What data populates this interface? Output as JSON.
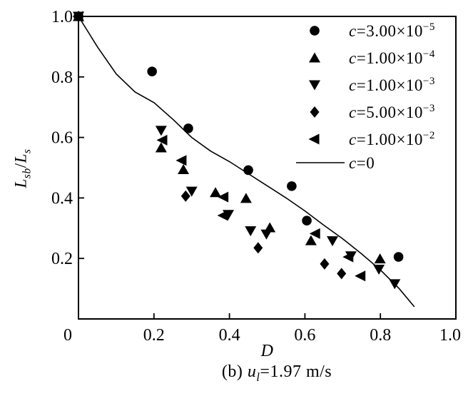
{
  "figure": {
    "caption": {
      "prefix": "(b) ",
      "symbol": "u",
      "subscript": "l",
      "rest": "=1.97 m/s"
    },
    "xlabel": "D",
    "ylabel": {
      "l1": "L",
      "sub1": "sb",
      "slash": "/",
      "l2": "L",
      "sub2": "s"
    }
  },
  "colors": {
    "ink": "#000000",
    "background": "#ffffff"
  },
  "chart_data": {
    "type": "scatter",
    "title": "",
    "xlabel": "D",
    "ylabel": "Lsb/Ls",
    "xlim": [
      0,
      1.0
    ],
    "ylim": [
      0,
      1.0
    ],
    "grid": false,
    "legend_position": "upper-right-inside",
    "x_ticks": [
      {
        "v": 0.0,
        "label": "0",
        "dx": -15
      },
      {
        "v": 0.2,
        "label": "0.2",
        "dx": 0
      },
      {
        "v": 0.4,
        "label": "0.4",
        "dx": 0
      },
      {
        "v": 0.6,
        "label": "0.6",
        "dx": 0
      },
      {
        "v": 0.8,
        "label": "0.8",
        "dx": 0
      },
      {
        "v": 1.0,
        "label": "1.0",
        "dx": -8
      }
    ],
    "y_ticks": [
      {
        "v": 0.2,
        "label": "0.2"
      },
      {
        "v": 0.4,
        "label": "0.4"
      },
      {
        "v": 0.6,
        "label": "0.6"
      },
      {
        "v": 0.8,
        "label": "0.8"
      },
      {
        "v": 1.0,
        "label": "1.0"
      }
    ],
    "series": [
      {
        "name": "c=3.00e-5",
        "marker": "circle",
        "legend": {
          "var": "c",
          "eq": "=3.00×10",
          "exp": "−5"
        },
        "points": [
          [
            0,
            1.0
          ],
          [
            0.195,
            0.818
          ],
          [
            0.291,
            0.63
          ],
          [
            0.45,
            0.492
          ],
          [
            0.565,
            0.439
          ],
          [
            0.605,
            0.325
          ],
          [
            0.848,
            0.205
          ]
        ]
      },
      {
        "name": "c=1.00e-4",
        "marker": "triangle-up",
        "legend": {
          "var": "c",
          "eq": "=1.00×10",
          "exp": "−4"
        },
        "points": [
          [
            0,
            1.0
          ],
          [
            0.219,
            0.566
          ],
          [
            0.278,
            0.494
          ],
          [
            0.363,
            0.418
          ],
          [
            0.444,
            0.399
          ],
          [
            0.507,
            0.302
          ],
          [
            0.616,
            0.259
          ],
          [
            0.799,
            0.199
          ]
        ]
      },
      {
        "name": "c=1.00e-3",
        "marker": "triangle-down",
        "legend": {
          "var": "c",
          "eq": "=1.00×10",
          "exp": "−3"
        },
        "points": [
          [
            0,
            1.0
          ],
          [
            0.219,
            0.623
          ],
          [
            0.3,
            0.422
          ],
          [
            0.397,
            0.345
          ],
          [
            0.456,
            0.291
          ],
          [
            0.498,
            0.28
          ],
          [
            0.673,
            0.258
          ],
          [
            0.722,
            0.208
          ],
          [
            0.796,
            0.164
          ],
          [
            0.838,
            0.116
          ]
        ]
      },
      {
        "name": "c=5.00e-3",
        "marker": "diamond",
        "legend": {
          "var": "c",
          "eq": "=5.00×10",
          "exp": "−3"
        },
        "points": [
          [
            0,
            1.0
          ],
          [
            0.284,
            0.406
          ],
          [
            0.476,
            0.235
          ],
          [
            0.652,
            0.182
          ],
          [
            0.697,
            0.15
          ]
        ]
      },
      {
        "name": "c=1.00e-2",
        "marker": "triangle-left",
        "legend": {
          "var": "c",
          "eq": "=1.00×10",
          "exp": "−2"
        },
        "points": [
          [
            0,
            1.0
          ],
          [
            0.223,
            0.591
          ],
          [
            0.274,
            0.524
          ],
          [
            0.385,
            0.403
          ],
          [
            0.384,
            0.342
          ],
          [
            0.628,
            0.282
          ],
          [
            0.716,
            0.205
          ],
          [
            0.748,
            0.142
          ]
        ]
      },
      {
        "name": "c=0",
        "marker": "line",
        "legend": {
          "var": "c",
          "eq": "=0",
          "exp": ""
        },
        "points": [
          [
            0,
            1.0
          ],
          [
            0.05,
            0.9
          ],
          [
            0.1,
            0.81
          ],
          [
            0.15,
            0.75
          ],
          [
            0.2,
            0.715
          ],
          [
            0.25,
            0.66
          ],
          [
            0.3,
            0.6
          ],
          [
            0.35,
            0.555
          ],
          [
            0.4,
            0.52
          ],
          [
            0.45,
            0.48
          ],
          [
            0.5,
            0.44
          ],
          [
            0.55,
            0.4
          ],
          [
            0.6,
            0.357
          ],
          [
            0.65,
            0.31
          ],
          [
            0.7,
            0.265
          ],
          [
            0.75,
            0.215
          ],
          [
            0.8,
            0.162
          ],
          [
            0.85,
            0.1
          ],
          [
            0.89,
            0.04
          ]
        ]
      }
    ]
  }
}
